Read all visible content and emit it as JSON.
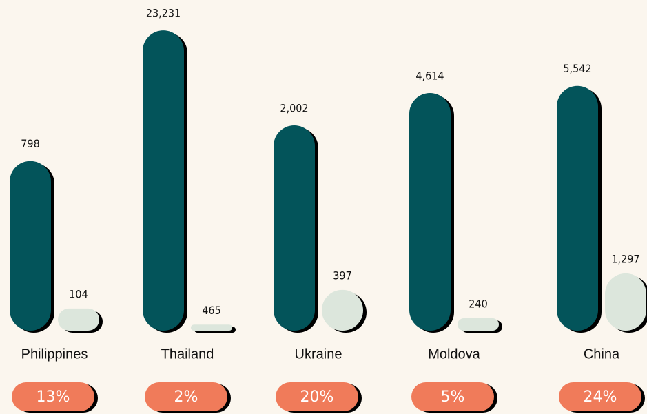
{
  "chart_data": {
    "type": "bar",
    "log_scale": true,
    "ylim": [
      10,
      25000
    ],
    "categories": [
      "Philippines",
      "Thailand",
      "Ukraine",
      "Moldova",
      "China"
    ],
    "series": [
      {
        "color": "#03545a",
        "values": [
          798,
          23231,
          2002,
          4614,
          5542
        ],
        "value_labels": [
          "798",
          "23,231",
          "2,002",
          "4,614",
          "5,542"
        ]
      },
      {
        "color": "#dce6dc",
        "values": [
          104,
          465,
          397,
          240,
          1297
        ],
        "value_labels": [
          "104",
          "465",
          "397",
          "240",
          "1,297"
        ]
      }
    ],
    "shares": {
      "color": "#f07b5a",
      "values": [
        13,
        2,
        20,
        5,
        24
      ],
      "value_labels": [
        "13%",
        "2%",
        "20%",
        "5%",
        "24%"
      ]
    }
  }
}
